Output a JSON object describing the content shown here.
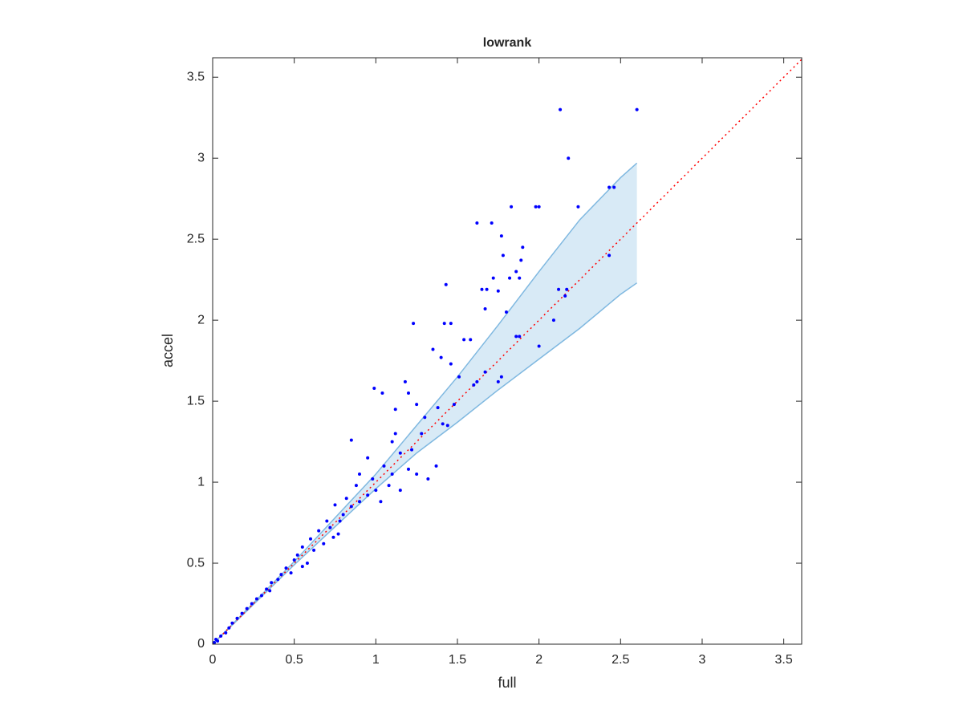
{
  "chart_data": {
    "type": "scatter",
    "title": "lowrank",
    "xlabel": "full",
    "ylabel": "accel",
    "xlim": [
      0,
      3.61
    ],
    "ylim": [
      0,
      3.62
    ],
    "xticks": [
      0,
      0.5,
      1,
      1.5,
      2,
      2.5,
      3,
      3.5
    ],
    "yticks": [
      0,
      0.5,
      1,
      1.5,
      2,
      2.5,
      3,
      3.5
    ],
    "grid": false,
    "points": {
      "color": "#0000ff",
      "x": [
        2.13,
        2.6,
        2.18,
        2.43,
        2.46,
        1.62,
        1.71,
        1.83,
        1.98,
        2.0,
        2.24,
        1.77,
        1.78,
        1.9,
        1.89,
        1.86,
        1.88,
        1.82,
        1.72,
        1.43,
        1.65,
        1.68,
        1.75,
        1.67,
        1.8,
        2.12,
        2.16,
        2.17,
        2.09,
        2.0,
        2.43,
        1.23,
        1.42,
        1.46,
        1.54,
        1.58,
        1.35,
        1.4,
        1.46,
        1.51,
        1.6,
        1.62,
        1.75,
        1.77,
        1.67,
        1.48,
        1.41,
        1.44,
        1.37,
        1.32,
        1.86,
        1.88,
        0.99,
        1.04,
        1.18,
        1.2,
        1.12,
        1.25,
        1.3,
        1.38,
        1.28,
        0.85,
        1.1,
        1.15,
        1.22,
        1.05,
        1.1,
        0.98,
        1.0,
        0.95,
        1.08,
        1.15,
        1.2,
        0.88,
        0.9,
        0.85,
        0.8,
        0.75,
        0.72,
        0.78,
        0.7,
        0.65,
        0.68,
        0.6,
        0.62,
        0.55,
        0.52,
        0.5,
        0.45,
        0.48,
        0.42,
        0.4,
        0.36,
        0.33,
        0.3,
        0.27,
        0.24,
        0.21,
        0.18,
        0.15,
        0.12,
        0.1,
        0.08,
        0.05,
        0.03,
        0.02,
        0.01,
        0.9,
        0.95,
        0.82,
        0.77,
        0.58,
        0.35,
        0.55,
        1.25,
        1.12,
        1.03,
        0.74
      ],
      "values": [
        3.3,
        3.3,
        3.0,
        2.82,
        2.82,
        2.6,
        2.6,
        2.7,
        2.7,
        2.7,
        2.7,
        2.52,
        2.4,
        2.45,
        2.37,
        2.3,
        2.26,
        2.26,
        2.26,
        2.22,
        2.19,
        2.19,
        2.18,
        2.07,
        2.05,
        2.19,
        2.15,
        2.19,
        2.0,
        1.84,
        2.4,
        1.98,
        1.98,
        1.98,
        1.88,
        1.88,
        1.82,
        1.77,
        1.73,
        1.65,
        1.6,
        1.62,
        1.62,
        1.65,
        1.68,
        1.48,
        1.36,
        1.35,
        1.1,
        1.02,
        1.9,
        1.9,
        1.58,
        1.55,
        1.62,
        1.55,
        1.45,
        1.48,
        1.4,
        1.46,
        1.3,
        1.26,
        1.25,
        1.18,
        1.2,
        1.1,
        1.05,
        1.02,
        0.95,
        0.92,
        0.98,
        0.95,
        1.08,
        0.98,
        0.88,
        0.85,
        0.8,
        0.86,
        0.72,
        0.76,
        0.76,
        0.7,
        0.62,
        0.65,
        0.58,
        0.6,
        0.55,
        0.52,
        0.47,
        0.44,
        0.43,
        0.4,
        0.38,
        0.34,
        0.3,
        0.28,
        0.25,
        0.22,
        0.19,
        0.16,
        0.13,
        0.1,
        0.07,
        0.05,
        0.02,
        0.03,
        0.01,
        1.05,
        1.15,
        0.9,
        0.68,
        0.5,
        0.33,
        0.48,
        1.05,
        1.3,
        0.88,
        0.66
      ]
    },
    "band": {
      "color": "#7fb8e0",
      "x": [
        0,
        0.5,
        1,
        1.25,
        1.5,
        1.75,
        2,
        2.25,
        2.5,
        2.6
      ],
      "upper": [
        0,
        0.51,
        1.05,
        1.35,
        1.65,
        1.97,
        2.3,
        2.62,
        2.88,
        2.97
      ],
      "lower": [
        0,
        0.49,
        0.96,
        1.18,
        1.37,
        1.57,
        1.76,
        1.95,
        2.16,
        2.23
      ]
    },
    "reference_line": {
      "color": "#ff0000",
      "x": [
        0,
        3.61
      ],
      "values": [
        0,
        3.61
      ]
    }
  }
}
